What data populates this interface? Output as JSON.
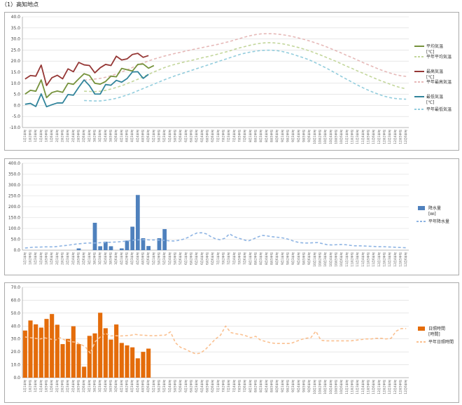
{
  "page_title": "（1）高知地点",
  "colors": {
    "avg": "#76923C",
    "avg_normal": "#C3D69B",
    "max": "#953735",
    "max_normal": "#E6B9B8",
    "min": "#31849B",
    "min_normal": "#93CDDD",
    "precip": "#4F81BD",
    "precip_normal": "#8EB4E3",
    "sun": "#E46C0A",
    "sun_normal": "#FAC090"
  },
  "chart_data": [
    {
      "type": "line",
      "y_ticks": [
        "40.0",
        "35.0",
        "30.0",
        "25.0",
        "20.0",
        "15.0",
        "10.0",
        "5.0",
        "0.0",
        "-5.0",
        "-10.0"
      ],
      "ylim": [
        -10,
        40
      ],
      "legend": [
        {
          "label_lines": [
            "平均気温",
            "[℃]"
          ],
          "style": "solid",
          "key": "avg"
        },
        {
          "label_lines": [
            "平年平均気温"
          ],
          "style": "dashed",
          "key": "avg_normal"
        },
        {
          "label_lines": [
            "最高気温",
            "[℃]"
          ],
          "style": "solid",
          "key": "max"
        },
        {
          "label_lines": [
            "平年最高気温"
          ],
          "style": "dashed",
          "key": "max_normal"
        },
        {
          "label_lines": [
            "最低気温",
            "[℃]"
          ],
          "style": "solid",
          "key": "min"
        },
        {
          "label_lines": [
            "平年最低気温"
          ],
          "style": "dashed",
          "key": "min_normal"
        }
      ],
      "series_obs": {
        "avg": [
          5.1,
          6.8,
          6.4,
          11.5,
          3.5,
          5.8,
          6.5,
          5.9,
          10,
          9.5,
          12,
          14.3,
          13.5,
          10,
          9.6,
          10.8,
          13.2,
          12.9,
          16.7,
          16.1,
          15.5,
          18.5,
          18.7,
          16.8,
          18
        ],
        "max": [
          11.9,
          13.5,
          13.2,
          18.2,
          9,
          12.5,
          13.6,
          12,
          16.5,
          15.2,
          19.4,
          18.3,
          18,
          14.7,
          17,
          18.5,
          18,
          22.2,
          20.5,
          21,
          23,
          23.5,
          21.7,
          22.5
        ],
        "min": [
          0.5,
          0.9,
          -0.5,
          5.2,
          -0.6,
          0.3,
          1.1,
          1.1,
          4.9,
          4.6,
          8.2,
          11.5,
          8.9,
          5.1,
          5.1,
          9.4,
          9.1,
          11.3,
          10.5,
          12.1,
          15.1,
          15.2,
          12.2,
          14
        ]
      },
      "series_normal": {
        "avg": [
          6.4,
          6.3,
          6.2,
          6.4,
          6.8,
          7.4,
          8.1,
          8.9,
          9.8,
          10.8,
          11.8,
          12.9,
          14,
          15.1,
          16.1,
          17.1,
          17.9,
          18.6,
          19.2,
          19.8,
          20.3,
          20.9,
          21.5,
          22,
          22.6,
          23.2,
          23.9,
          24.5,
          25.3,
          26,
          26.6,
          27.2,
          27.7,
          28.1,
          28.3,
          28.3,
          28.1,
          27.8,
          27.3,
          26.7,
          26.1,
          25.4,
          24.6,
          23.7,
          22.8,
          21.8,
          20.8,
          19.8,
          18.7,
          17.6,
          16.6,
          15.5,
          14.5,
          13.4,
          12.4,
          11.4,
          10.5,
          9.6,
          8.7,
          8,
          7.5
        ],
        "max": [
          11.4,
          11.6,
          11.9,
          12.2,
          12.7,
          13.4,
          14.2,
          15.1,
          16.1,
          17.1,
          18.2,
          19.2,
          20.1,
          20.9,
          21.6,
          22.3,
          22.9,
          23.5,
          24,
          24.6,
          25.1,
          25.6,
          26.1,
          26.6,
          27.1,
          27.6,
          28.2,
          28.8,
          29.5,
          30.2,
          30.9,
          31.5,
          32,
          32.3,
          32.4,
          32.4,
          32.2,
          31.9,
          31.5,
          31,
          30.4,
          29.8,
          29.1,
          28.3,
          27.5,
          26.6,
          25.6,
          24.6,
          23.6,
          22.5,
          21.5,
          20.4,
          19.3,
          18.3,
          17.3,
          16.3,
          15.4,
          14.6,
          13.9,
          13.4,
          13.1
        ],
        "min": [
          2.2,
          2.1,
          2,
          2,
          2.3,
          2.7,
          3.2,
          3.9,
          4.7,
          5.6,
          6.6,
          7.6,
          8.6,
          9.6,
          10.6,
          11.6,
          12.5,
          13.4,
          14.2,
          15,
          15.8,
          16.6,
          17.4,
          18.2,
          19,
          19.8,
          20.6,
          21.4,
          22.2,
          23,
          23.6,
          24.1,
          24.5,
          24.8,
          24.9,
          24.9,
          24.7,
          24.3,
          23.7,
          23,
          22.2,
          21.4,
          20.5,
          19.4,
          18.2,
          17,
          15.7,
          14.4,
          13,
          11.7,
          10.4,
          9.1,
          7.9,
          6.8,
          5.8,
          4.9,
          4.1,
          3.5,
          3.1,
          2.9,
          2.8
        ]
      }
    },
    {
      "type": "bar",
      "y_ticks": [
        "400.0",
        "350.0",
        "300.0",
        "250.0",
        "200.0",
        "150.0",
        "100.0",
        "50.0",
        "0.0"
      ],
      "ylim": [
        0,
        400
      ],
      "legend": [
        {
          "label_lines": [
            "降水量",
            "[㎜]"
          ],
          "style": "bar",
          "key": "precip"
        },
        {
          "label_lines": [
            "平年降水量"
          ],
          "style": "dashed",
          "key": "precip_normal"
        }
      ],
      "values": [
        0,
        0,
        0,
        0,
        0,
        0,
        0,
        0,
        0,
        0,
        8,
        0,
        0,
        126,
        18,
        39,
        18,
        0,
        8,
        44,
        108,
        254,
        55,
        19,
        0,
        55,
        97
      ],
      "normal": [
        10,
        12,
        14,
        14,
        15,
        15,
        15,
        17,
        20,
        22,
        25,
        28,
        30,
        32,
        33,
        33,
        34,
        35,
        36,
        37,
        38,
        40,
        42,
        45,
        47,
        48,
        48,
        47,
        47,
        46,
        45,
        43,
        42,
        45,
        50,
        58,
        70,
        79,
        80,
        75,
        62,
        52,
        48,
        55,
        75,
        62,
        55,
        48,
        42,
        50,
        60,
        68,
        66,
        62,
        60,
        58,
        54,
        48,
        40,
        35,
        33,
        33,
        34,
        35,
        30,
        25,
        24,
        25,
        26,
        25,
        22,
        20,
        20,
        19,
        18,
        17,
        16,
        16,
        15,
        14,
        13,
        12,
        11
      ]
    },
    {
      "type": "bar",
      "y_ticks": [
        "70.0",
        "60.0",
        "50.0",
        "40.0",
        "30.0",
        "20.0",
        "10.0",
        "0.0"
      ],
      "ylim": [
        0,
        70
      ],
      "legend": [
        {
          "label_lines": [
            "日照時間",
            "[時間]"
          ],
          "style": "bar",
          "key": "sun"
        },
        {
          "label_lines": [
            "平年日照時間"
          ],
          "style": "dashed",
          "key": "sun_normal"
        }
      ],
      "values": [
        36.5,
        44.3,
        41.3,
        38.8,
        45.5,
        49.3,
        41,
        26,
        30,
        39.8,
        26,
        8.5,
        32.4,
        34.3,
        50.3,
        38.3,
        29.5,
        41.2,
        26.9,
        25,
        23.5,
        15,
        20,
        22.5
      ],
      "normal": [
        31.5,
        31,
        30.5,
        30,
        30.8,
        30,
        29,
        31,
        29,
        28,
        27.5,
        26,
        24,
        19,
        28,
        31.5,
        34.5,
        32.3,
        32.5,
        32.3,
        32.5,
        32.8,
        33.5,
        33,
        32.8,
        32.5,
        32.5,
        32.8,
        33,
        35.5,
        27,
        23.5,
        22,
        20,
        18.5,
        19,
        22,
        26,
        30,
        33,
        40,
        35,
        34,
        33.5,
        32.5,
        31,
        32,
        29,
        28,
        27,
        26.5,
        26.5,
        26.5,
        26.5,
        28,
        29.5,
        30.5,
        31,
        36,
        29,
        28.5,
        28.5,
        28.5,
        28.5,
        28.5,
        28.5,
        29,
        29.5,
        30,
        30,
        30.5,
        30.5,
        30,
        30.5,
        36,
        38,
        38
      ]
    }
  ],
  "x_labels": [
    "1月1半旬",
    "1月2半旬",
    "1月3半旬",
    "1月4半旬",
    "1月5半旬",
    "1月6半旬",
    "2月1半旬",
    "2月2半旬",
    "2月3半旬",
    "2月4半旬",
    "2月5半旬",
    "2月6半旬",
    "3月1半旬",
    "3月2半旬",
    "3月3半旬",
    "3月4半旬",
    "3月5半旬",
    "3月6半旬",
    "4月1半旬",
    "4月2半旬",
    "4月3半旬",
    "4月4半旬",
    "4月5半旬",
    "4月6半旬",
    "5月1半旬",
    "5月2半旬",
    "5月3半旬",
    "5月4半旬",
    "5月5半旬",
    "5月6半旬",
    "6月1半旬",
    "6月2半旬",
    "6月3半旬",
    "6月4半旬",
    "6月5半旬",
    "6月6半旬",
    "7月1半旬",
    "7月2半旬",
    "7月3半旬",
    "7月4半旬",
    "7月5半旬",
    "7月6半旬",
    "8月1半旬",
    "8月2半旬",
    "8月3半旬",
    "8月4半旬",
    "8月5半旬",
    "8月6半旬",
    "9月1半旬",
    "9月2半旬",
    "9月3半旬",
    "9月4半旬",
    "9月5半旬",
    "9月6半旬",
    "10月1半旬",
    "10月2半旬",
    "10月3半旬",
    "10月4半旬",
    "10月5半旬",
    "10月6半旬",
    "11月1半旬",
    "11月2半旬",
    "11月3半旬",
    "11月4半旬",
    "11月5半旬",
    "11月6半旬",
    "12月1半旬",
    "12月2半旬",
    "12月3半旬",
    "12月4半旬",
    "12月5半旬",
    "12月6半旬"
  ]
}
